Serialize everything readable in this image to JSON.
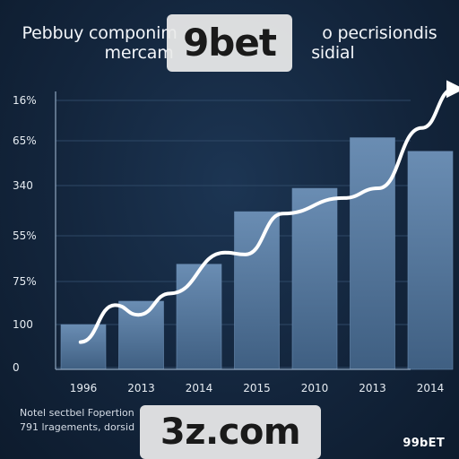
{
  "header": {
    "title_line1": "Pebbuy componim",
    "title_line1_tail": "o pecrisiondis",
    "title_line2": "mercam",
    "title_line2_tail": "sidial"
  },
  "watermarks": {
    "top": "9bet",
    "bottom": "3z.com"
  },
  "footer": {
    "note_line1": "Notel sectbel Fopertion",
    "note_line2": "791 lragements, dorsid",
    "brand": "99bET"
  },
  "colors": {
    "background": "#13253c",
    "bar_fill": "#4f7196",
    "bar_highlight": "#6a8db3",
    "trend_line": "#ffffff",
    "gridline": "#2e4866",
    "axis": "#8fa6bf"
  },
  "chart_data": {
    "type": "bar",
    "title": "",
    "xlabel": "",
    "ylabel": "",
    "categories": [
      "1996",
      "2013",
      "2014",
      "2015",
      "2010",
      "2013",
      "2014"
    ],
    "values": [
      115,
      175,
      270,
      405,
      465,
      595,
      560
    ],
    "y_tick_labels": [
      "0",
      "100",
      "75%",
      "55%",
      "340",
      "65%",
      "16%"
    ],
    "ylim": [
      0,
      700
    ],
    "grid": true,
    "trend_line": {
      "type": "line",
      "ends_with_arrow": true,
      "points": [
        [
          -0.05,
          70
        ],
        [
          0.55,
          165
        ],
        [
          0.95,
          140
        ],
        [
          1.5,
          195
        ],
        [
          2.45,
          300
        ],
        [
          2.8,
          295
        ],
        [
          3.45,
          400
        ],
        [
          4.5,
          440
        ],
        [
          5.1,
          465
        ],
        [
          5.85,
          620
        ],
        [
          6.4,
          720
        ]
      ]
    }
  }
}
